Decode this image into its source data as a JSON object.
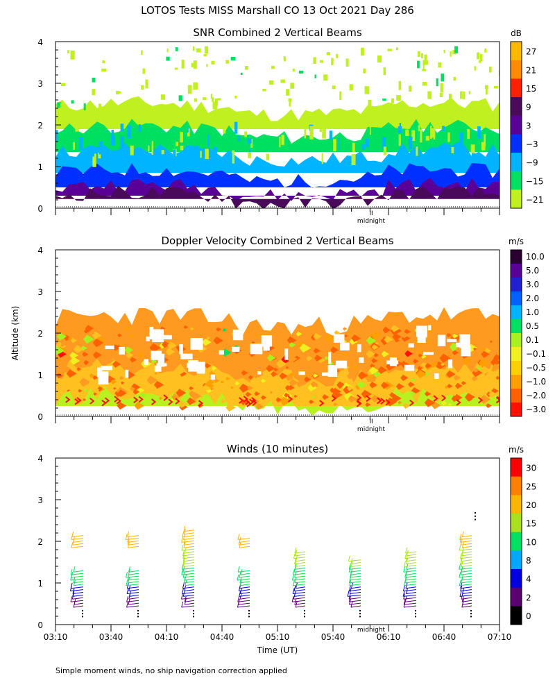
{
  "figure": {
    "main_title": "LOTOS Tests MISS Marshall CO  13 Oct 2021 Day 286",
    "ylabel": "Altitude (km)",
    "xlabel": "Time (UT)",
    "midnight_label": "midnight",
    "midnight_mark": "II",
    "footnote": "Simple moment winds, no ship navigation correction applied"
  },
  "chart_data": [
    {
      "type": "heatmap",
      "title": "SNR Combined 2 Vertical Beams",
      "ylabel": "Altitude (km)",
      "ylim": [
        0,
        4
      ],
      "yticks": [
        "0",
        "1",
        "2",
        "3",
        "4"
      ],
      "xlim": [
        0,
        240
      ],
      "show_xtick_labels": false,
      "colorbar": {
        "unit": "dB",
        "tick_labels": [
          "27",
          "21",
          "15",
          "9",
          "3",
          "−3",
          "−9",
          "−15",
          "−21"
        ],
        "colors": [
          "#ffb800",
          "#ff8c00",
          "#ff2000",
          "#4a0a5a",
          "#5a0096",
          "#0030ff",
          "#00b4ff",
          "#00e060",
          "#c0f020"
        ]
      },
      "layers": [
        {
          "name": "-21 dB",
          "bottom": 1.9,
          "top": 2.45,
          "color": "#c0f020"
        },
        {
          "name": "-15 dB",
          "bottom": 1.35,
          "top": 1.9,
          "color": "#00e060"
        },
        {
          "name": "-9 dB",
          "bottom": 0.85,
          "top": 1.35,
          "color": "#00b4ff"
        },
        {
          "name": "-3 dB",
          "bottom": 0.5,
          "top": 0.85,
          "color": "#0030ff"
        },
        {
          "name": "3 dB",
          "bottom": 0.3,
          "top": 0.5,
          "color": "#5a0096"
        },
        {
          "name": "9 dB",
          "bottom": 0.22,
          "top": 0.3,
          "color": "#4a0a5a"
        }
      ]
    },
    {
      "type": "heatmap",
      "title": "Doppler Velocity Combined 2 Vertical Beams",
      "ylabel": "Altitude (km)",
      "ylim": [
        0,
        4
      ],
      "yticks": [
        "0",
        "1",
        "2",
        "3",
        "4"
      ],
      "xlim": [
        0,
        240
      ],
      "show_xtick_labels": false,
      "colorbar": {
        "unit": "m/s",
        "tick_labels": [
          "10.0",
          "5.0",
          "3.0",
          "2.0",
          "1.0",
          "0.5",
          "0.1",
          "−0.1",
          "−0.5",
          "−1.0",
          "−2.0",
          "−3.0"
        ],
        "colors": [
          "#2a0030",
          "#5a0096",
          "#2020d0",
          "#0060ff",
          "#00b4ff",
          "#00e060",
          "#a8f020",
          "#f0f020",
          "#ffd000",
          "#ffa000",
          "#ff6000",
          "#ff1000"
        ]
      },
      "layers": [
        {
          "name": "-1.0 to -2.0 m/s",
          "bottom": 0.25,
          "top": 2.35,
          "color": "#ff9a20"
        },
        {
          "name": "-0.5 m/s",
          "bottom": 0.25,
          "top": 1.1,
          "color": "#ffc020"
        },
        {
          "name": "0.1 m/s",
          "bottom": 0.25,
          "top": 0.45,
          "color": "#b8f020"
        }
      ]
    },
    {
      "type": "scatter",
      "title": "Winds (10 minutes)",
      "ylabel": "Altitude (km)",
      "xlabel": "Time (UT)",
      "ylim": [
        0,
        4
      ],
      "yticks": [
        "0",
        "1",
        "2",
        "3",
        "4"
      ],
      "xlim": [
        0,
        240
      ],
      "xtick_labels": [
        "03:10",
        "03:40",
        "04:10",
        "04:40",
        "05:10",
        "05:40",
        "06:10",
        "06:40",
        "07:10"
      ],
      "colorbar": {
        "unit": "m/s",
        "tick_labels": [
          "30",
          "25",
          "20",
          "15",
          "10",
          "8",
          "4",
          "2",
          "0"
        ],
        "colors": [
          "#ff0000",
          "#ff8000",
          "#ffb400",
          "#a8e020",
          "#00e060",
          "#00a8ff",
          "#0000e0",
          "#5a0070",
          "#000000"
        ]
      },
      "wind_profile_times_min": [
        15,
        45,
        75,
        105,
        135,
        165,
        195,
        225
      ]
    }
  ]
}
